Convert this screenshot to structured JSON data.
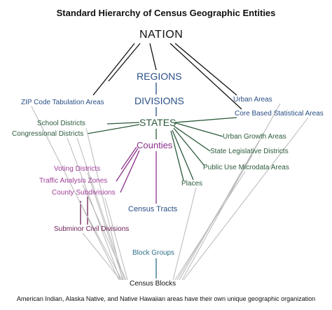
{
  "title": "Standard Hierarchy of Census Geographic Entities",
  "footer": "American Indian, Alaska Native, and Native Hawaiian areas have their own unique geographic organization",
  "nodes": {
    "nation": "NATION",
    "regions": "REGIONS",
    "divisions": "DIVISIONS",
    "states": "STATES",
    "counties": "Counties",
    "census_tracts": "Census Tracts",
    "block_groups": "Block Groups",
    "census_blocks": "Census Blocks",
    "zcta": "ZIP Code Tabulation Areas",
    "urban_areas": "Urban Areas",
    "cbsa": "Core Based Statistical Areas",
    "school_districts": "School Districts",
    "congressional_districts": "Congressional Districts",
    "urban_growth_areas": "Urban Growth Areas",
    "state_legislative_districts": "State Legislative Districts",
    "puma": "Public Use Microdata Areas",
    "places": "Places",
    "voting_districts": "Voting Districts",
    "traffic_analysis_zones": "Traffic Analysis Zones",
    "county_subdivisions": "County Subdivisions",
    "subminor_civil_divisions": "Subminor Civil Divisions"
  },
  "colors": {
    "black": "#111111",
    "blue": "#2a4f86",
    "green": "#2b5a3b",
    "purple": "#8a2f8a",
    "pink": "#a0409a",
    "maroon": "#6d1f55",
    "teal": "#2f6f8a",
    "gray": "#b8b8b8"
  }
}
